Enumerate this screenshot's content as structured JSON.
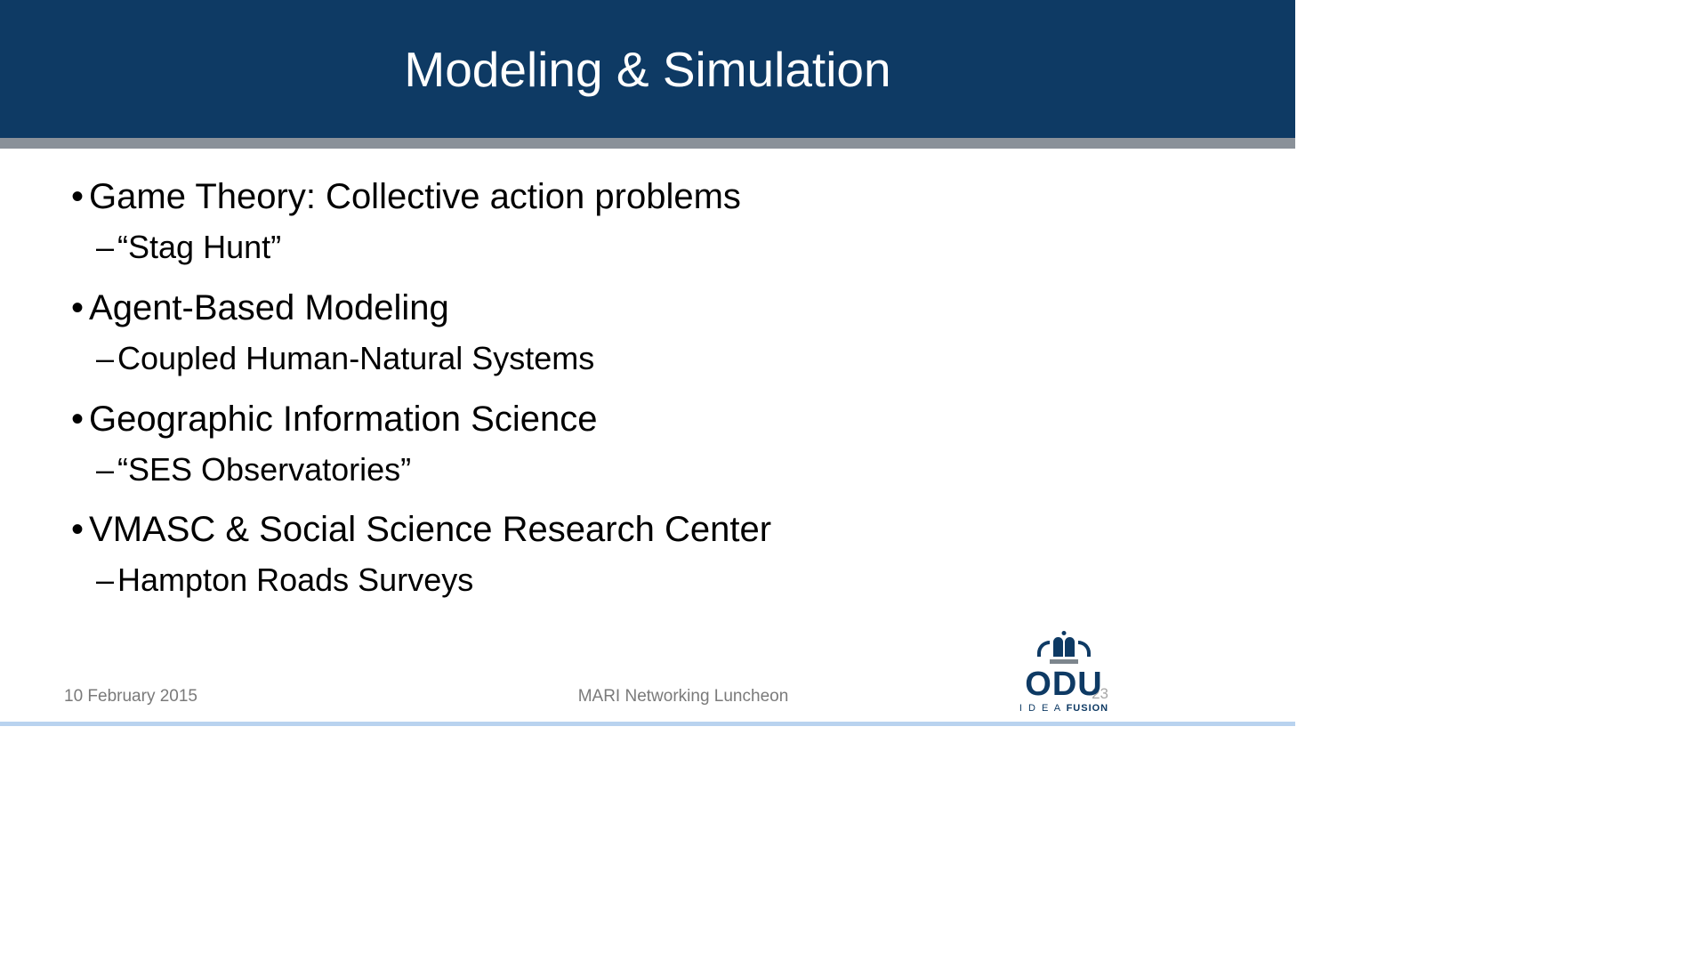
{
  "colors": {
    "header_bg": "#0e3a64",
    "header_text": "#ffffff",
    "divider": "#8a9199",
    "body_text": "#000000",
    "footer_text": "#7a7a7a",
    "bottom_rule": "#b9d3ef",
    "logo_primary": "#0e3a64",
    "logo_secondary": "#7d868d"
  },
  "title": "Modeling & Simulation",
  "bullets": [
    {
      "text": "Game Theory: Collective action problems",
      "sub": [
        "“Stag Hunt”"
      ]
    },
    {
      "text": "Agent-Based Modeling",
      "sub": [
        "Coupled Human-Natural Systems"
      ]
    },
    {
      "text": "Geographic Information Science",
      "sub": [
        "“SES Observatories”"
      ]
    },
    {
      "text": "VMASC & Social Science Research Center",
      "sub": [
        "Hampton Roads Surveys"
      ]
    }
  ],
  "footer": {
    "date": "10 February 2015",
    "center": "MARI Networking Luncheon",
    "page_number": "23"
  },
  "logo": {
    "main": "ODU",
    "tagline_a": "I D E A ",
    "tagline_b": "FUSION"
  }
}
